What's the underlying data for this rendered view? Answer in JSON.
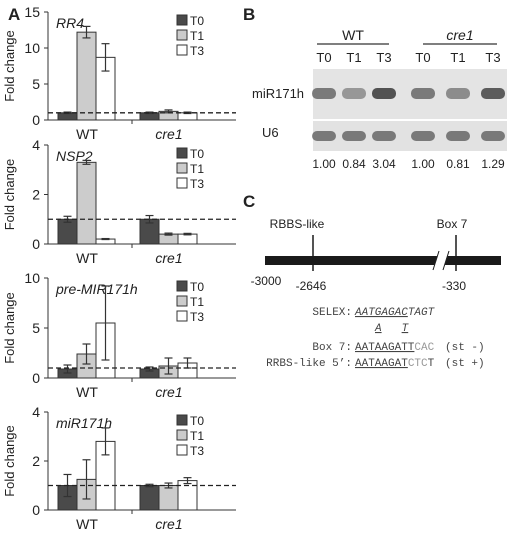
{
  "panels": {
    "A": "A",
    "B": "B",
    "C": "C"
  },
  "colors": {
    "T0": "#4a4a4a",
    "T1": "#cccccc",
    "T3": "#ffffff"
  },
  "chart_data": [
    {
      "type": "bar",
      "title": "RR4",
      "ylabel": "Fold change",
      "ylim": [
        0,
        15
      ],
      "yticks": [
        0,
        5,
        10,
        15
      ],
      "reference_line": 1,
      "categories": [
        "WT",
        "cre1"
      ],
      "series": [
        {
          "name": "T0",
          "values": [
            1.0,
            1.0
          ],
          "errors": [
            0.1,
            0.1
          ]
        },
        {
          "name": "T1",
          "values": [
            12.2,
            1.2
          ],
          "errors": [
            0.8,
            0.2
          ]
        },
        {
          "name": "T3",
          "values": [
            8.7,
            1.0
          ],
          "errors": [
            1.9,
            0.1
          ]
        }
      ]
    },
    {
      "type": "bar",
      "title": "NSP2",
      "ylabel": "Fold change",
      "ylim": [
        0,
        4
      ],
      "yticks": [
        0,
        2,
        4
      ],
      "reference_line": 1,
      "categories": [
        "WT",
        "cre1"
      ],
      "series": [
        {
          "name": "T0",
          "values": [
            1.0,
            1.0
          ],
          "errors": [
            0.12,
            0.15
          ]
        },
        {
          "name": "T1",
          "values": [
            3.3,
            0.4
          ],
          "errors": [
            0.08,
            0.04
          ]
        },
        {
          "name": "T3",
          "values": [
            0.2,
            0.4
          ],
          "errors": [
            0.02,
            0.03
          ]
        }
      ]
    },
    {
      "type": "bar",
      "title": "pre-MIR171h",
      "ylabel": "Fold change",
      "ylim": [
        0,
        10
      ],
      "yticks": [
        0,
        5,
        10
      ],
      "reference_line": 1,
      "categories": [
        "WT",
        "cre1"
      ],
      "series": [
        {
          "name": "T0",
          "values": [
            0.9,
            0.9
          ],
          "errors": [
            0.4,
            0.2
          ]
        },
        {
          "name": "T1",
          "values": [
            2.4,
            1.2
          ],
          "errors": [
            1.0,
            0.8
          ]
        },
        {
          "name": "T3",
          "values": [
            5.5,
            1.5
          ],
          "errors": [
            3.7,
            0.5
          ]
        }
      ]
    },
    {
      "type": "bar",
      "title": "miR171h",
      "ylabel": "Fold change",
      "ylim": [
        0,
        4
      ],
      "yticks": [
        0,
        2,
        4
      ],
      "reference_line": 1,
      "categories": [
        "WT",
        "cre1"
      ],
      "series": [
        {
          "name": "T0",
          "values": [
            1.0,
            1.0
          ],
          "errors": [
            0.45,
            0.05
          ]
        },
        {
          "name": "T1",
          "values": [
            1.25,
            1.0
          ],
          "errors": [
            0.8,
            0.1
          ]
        },
        {
          "name": "T3",
          "values": [
            2.8,
            1.2
          ],
          "errors": [
            0.55,
            0.12
          ]
        }
      ]
    }
  ],
  "blot": {
    "groups": [
      "WT",
      "cre1"
    ],
    "lanes": [
      "T0",
      "T1",
      "T3",
      "T0",
      "T1",
      "T3"
    ],
    "rows": [
      "miR171h",
      "U6"
    ],
    "quantification": [
      "1.00",
      "0.84",
      "3.04",
      "1.00",
      "0.81",
      "1.29"
    ]
  },
  "promoter": {
    "sites": [
      {
        "name": "RBBS-like",
        "position": "-2646"
      },
      {
        "name": "Box 7",
        "position": "-330"
      }
    ],
    "start": "-3000",
    "alignment": [
      {
        "label": "SELEX:",
        "seq": "AATGAGACTAGT",
        "note": ""
      },
      {
        "label": "",
        "seq": "A   T",
        "note": ""
      },
      {
        "label": "Box 7:",
        "seq": "AATAAGATTCAC",
        "note": "(st -)"
      },
      {
        "label": "RRBS-like 5’:",
        "seq": "AATAAGATCTCT",
        "note": "(st +)"
      }
    ]
  }
}
